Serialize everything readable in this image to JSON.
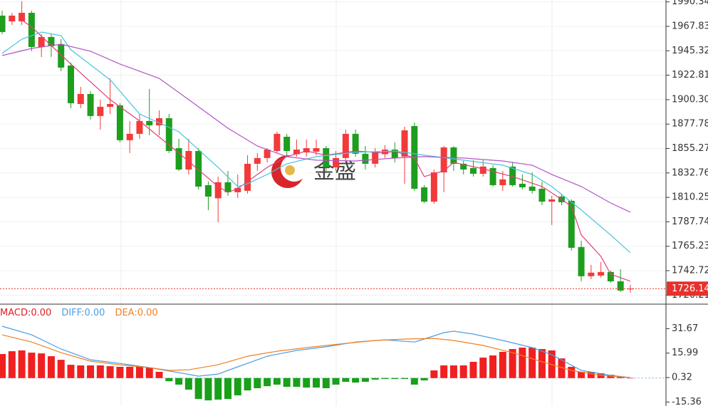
{
  "chart_data": [
    {
      "type": "candlestick",
      "watermark": "金盛",
      "xlim": [
        -0.22,
        67.63
      ],
      "ylim": [
        1713.2,
        1992.1
      ],
      "yticks": [
        1990.34,
        1967.83,
        1945.32,
        1922.81,
        {
          "value": 1900.3,
          "label": "1900.30"
        },
        1877.78,
        1855.27,
        1832.76,
        1810.25,
        1787.74,
        1765.23,
        1742.72,
        1720.21
      ],
      "grid": true,
      "up_color": "#f23a3a",
      "down_color": "#1e9e1e",
      "last_price": 1726.14,
      "last_price_color": "#e8302c",
      "candles": {
        "open": [
          1977.7,
          1972.4,
          1972.4,
          1980.3,
          1948.8,
          1958.0,
          1951.4,
          1931.7,
          1896.3,
          1905.5,
          1885.2,
          1893.7,
          1895.0,
          1862.9,
          1868.8,
          1880.6,
          1876.6,
          1883.2,
          1855.6,
          1835.9,
          1853.0,
          1821.5,
          1809.4,
          1824.2,
          1815.0,
          1816.3,
          1841.2,
          1846.5,
          1853.0,
          1866.1,
          1850.0,
          1851.7,
          1852.4,
          1855.6,
          1837.9,
          1846.5,
          1868.8,
          1850.4,
          1841.2,
          1850.0,
          1854.3,
          1847.8,
          1876.0,
          1819.5,
          1806.3,
          1833.3,
          1856.3,
          1841.2,
          1837.3,
          1832.0,
          1837.3,
          1821.5,
          1838.6,
          1822.8,
          1820.2,
          1818.2,
          1806.3,
          1811.0,
          1807.1,
          1764.5,
          1737.6,
          1738.2,
          1741.5,
          1732.9,
          1726.1
        ],
        "high": [
          1982.3,
          1980.3,
          1991.0,
          1982.3,
          1960.6,
          1960.6,
          1956.0,
          1934.4,
          1912.1,
          1908.1,
          1900.3,
          1919.9,
          1897.0,
          1880.6,
          1887.1,
          1910.1,
          1890.4,
          1887.1,
          1864.2,
          1864.2,
          1855.6,
          1824.8,
          1829.4,
          1834.6,
          1831.4,
          1849.1,
          1851.1,
          1855.6,
          1870.8,
          1868.8,
          1863.5,
          1863.5,
          1863.5,
          1857.6,
          1853.0,
          1872.7,
          1872.7,
          1857.6,
          1855.6,
          1858.3,
          1860.9,
          1875.3,
          1879.3,
          1821.5,
          1835.9,
          1857.6,
          1857.6,
          1843.8,
          1844.5,
          1844.5,
          1839.9,
          1834.6,
          1842.5,
          1831.4,
          1833.3,
          1824.8,
          1811.7,
          1813.7,
          1808.4,
          1770.4,
          1748.1,
          1750.7,
          1742.8,
          1744.1,
          1729.7
        ],
        "low": [
          1960.6,
          1969.1,
          1969.1,
          1944.9,
          1939.6,
          1939.6,
          1926.5,
          1892.4,
          1892.4,
          1881.9,
          1872.7,
          1887.1,
          1860.9,
          1851.1,
          1864.2,
          1867.5,
          1867.5,
          1851.1,
          1834.6,
          1831.4,
          1817.6,
          1798.5,
          1787.4,
          1811.7,
          1809.7,
          1813.7,
          1834.6,
          1842.5,
          1851.1,
          1849.1,
          1847.8,
          1847.8,
          1849.1,
          1834.6,
          1834.6,
          1842.5,
          1847.8,
          1835.9,
          1837.9,
          1846.5,
          1842.5,
          1822.8,
          1816.3,
          1805.0,
          1804.4,
          1815.0,
          1834.6,
          1831.4,
          1829.4,
          1829.4,
          1820.2,
          1816.3,
          1820.2,
          1817.6,
          1813.7,
          1803.1,
          1784.8,
          1803.1,
          1761.2,
          1733.0,
          1734.9,
          1736.3,
          1731.6,
          1723.1,
          1722.4
        ],
        "close": [
          1962.6,
          1977.7,
          1980.3,
          1948.8,
          1958.0,
          1949.5,
          1929.8,
          1897.0,
          1905.5,
          1885.2,
          1893.7,
          1896.3,
          1862.9,
          1868.8,
          1880.6,
          1876.6,
          1883.2,
          1853.0,
          1835.9,
          1853.0,
          1820.2,
          1811.0,
          1824.2,
          1815.0,
          1818.9,
          1841.2,
          1846.5,
          1854.3,
          1868.8,
          1853.0,
          1854.3,
          1855.6,
          1855.6,
          1837.9,
          1846.5,
          1868.8,
          1850.4,
          1841.2,
          1852.4,
          1854.3,
          1846.5,
          1872.0,
          1818.2,
          1806.3,
          1833.3,
          1856.3,
          1841.2,
          1835.9,
          1832.0,
          1838.6,
          1821.5,
          1826.8,
          1821.5,
          1819.5,
          1816.3,
          1806.3,
          1808.4,
          1805.8,
          1763.8,
          1737.6,
          1740.9,
          1741.5,
          1732.9,
          1724.4,
          1726.14
        ]
      },
      "series": [
        {
          "color": "#e0407a",
          "x": [
            2,
            3,
            7,
            11,
            14,
            18,
            22,
            23,
            24,
            27,
            29,
            31,
            33,
            36,
            39,
            40,
            42,
            43,
            45,
            46,
            49,
            52,
            55,
            57,
            58,
            59,
            61,
            62,
            64
          ],
          "values": [
            1973.7,
            1967.2,
            1933.1,
            1900.3,
            1880.6,
            1851.1,
            1820.2,
            1815.0,
            1818.3,
            1837.9,
            1847.8,
            1853.0,
            1849.1,
            1853.0,
            1851.1,
            1853.0,
            1846.5,
            1829.4,
            1834.6,
            1842.5,
            1836.6,
            1829.4,
            1820.2,
            1808.4,
            1801.9,
            1775.6,
            1755.9,
            1739.5,
            1733.0
          ]
        },
        {
          "color": "#48c4dc",
          "x": [
            0,
            2,
            4,
            6,
            7,
            11,
            14,
            18,
            22,
            24,
            25,
            27,
            29,
            32,
            36,
            40,
            43,
            47,
            51,
            54,
            56,
            59,
            62,
            64
          ],
          "values": [
            1942.9,
            1956.0,
            1962.6,
            1959.3,
            1946.2,
            1918.6,
            1887.1,
            1870.7,
            1837.9,
            1820.2,
            1822.8,
            1831.4,
            1841.2,
            1847.8,
            1851.7,
            1853.0,
            1849.1,
            1844.5,
            1839.9,
            1831.4,
            1820.2,
            1798.6,
            1775.6,
            1759.2
          ]
        },
        {
          "color": "#b453c8",
          "x": [
            0,
            3,
            6,
            9,
            12,
            16,
            19,
            23,
            26,
            29,
            32,
            36,
            40,
            43,
            47,
            51,
            54,
            56,
            59,
            62,
            64
          ],
          "values": [
            1940.9,
            1947.5,
            1951.4,
            1944.9,
            1933.1,
            1919.9,
            1900.3,
            1874.0,
            1857.6,
            1847.8,
            1844.5,
            1843.8,
            1846.5,
            1847.8,
            1846.5,
            1843.8,
            1839.9,
            1831.4,
            1820.2,
            1805.1,
            1796.6
          ]
        }
      ]
    },
    {
      "type": "macd",
      "xlim": [
        -0.22,
        67.63
      ],
      "ylim": [
        -17.9,
        46.9
      ],
      "yticks": [
        31.67,
        15.99,
        0.32,
        -15.36
      ],
      "up_color": "#f02020",
      "down_color": "#18a018",
      "zero_line_color": "#9cc8e8",
      "series": [
        {
          "name": "MACD:",
          "readout": "0.00",
          "color": "#e02020",
          "values": [
            15.4,
            17.2,
            17.7,
            16.3,
            15.8,
            14.0,
            11.7,
            8.5,
            8.1,
            8.1,
            8.1,
            7.6,
            7.2,
            7.2,
            7.6,
            6.7,
            4.0,
            -2.0,
            -4.2,
            -7.4,
            -13.4,
            -14.3,
            -13.8,
            -13.4,
            -11.1,
            -7.9,
            -6.5,
            -5.2,
            -4.2,
            -5.6,
            -5.6,
            -6.1,
            -6.1,
            -6.5,
            -4.2,
            -2.4,
            -2.9,
            -2.4,
            -1.0,
            -0.6,
            -0.6,
            -0.6,
            -4.2,
            -1.5,
            4.9,
            8.1,
            8.1,
            8.1,
            10.4,
            13.1,
            14.5,
            16.8,
            18.6,
            19.5,
            19.5,
            18.6,
            17.7,
            12.6,
            7.2,
            4.0,
            4.0,
            3.1,
            2.1,
            0.8,
            0
          ]
        },
        {
          "name": "DIFF:",
          "readout": "0.00",
          "color": "#4a9ee6",
          "x": [
            0,
            3,
            6,
            9,
            12,
            15,
            18,
            20,
            22,
            24,
            27,
            30,
            33,
            36,
            39,
            42,
            43,
            45,
            46,
            48,
            51,
            54,
            56,
            59,
            62,
            64
          ],
          "values": [
            33.2,
            27.7,
            18.6,
            11.7,
            9.4,
            6.7,
            3.5,
            1.2,
            2.6,
            7.2,
            14.0,
            17.7,
            20.0,
            23.1,
            24.5,
            23.1,
            25.0,
            29.1,
            30.0,
            28.2,
            24.1,
            19.5,
            14.9,
            4.9,
            1.7,
            0.3
          ]
        },
        {
          "name": "DEA:",
          "readout": "0.00",
          "color": "#f08020",
          "x": [
            0,
            3,
            6,
            9,
            12,
            15,
            17,
            19,
            22,
            25,
            28,
            31,
            35,
            38,
            41,
            44,
            46,
            49,
            52,
            55,
            58,
            61,
            64
          ],
          "values": [
            27.7,
            23.1,
            16.3,
            10.8,
            8.5,
            6.7,
            4.9,
            5.3,
            8.5,
            14.0,
            17.2,
            19.5,
            22.2,
            24.1,
            25.0,
            25.4,
            24.1,
            20.9,
            16.3,
            10.4,
            4.9,
            1.7,
            0.3
          ]
        }
      ]
    }
  ]
}
